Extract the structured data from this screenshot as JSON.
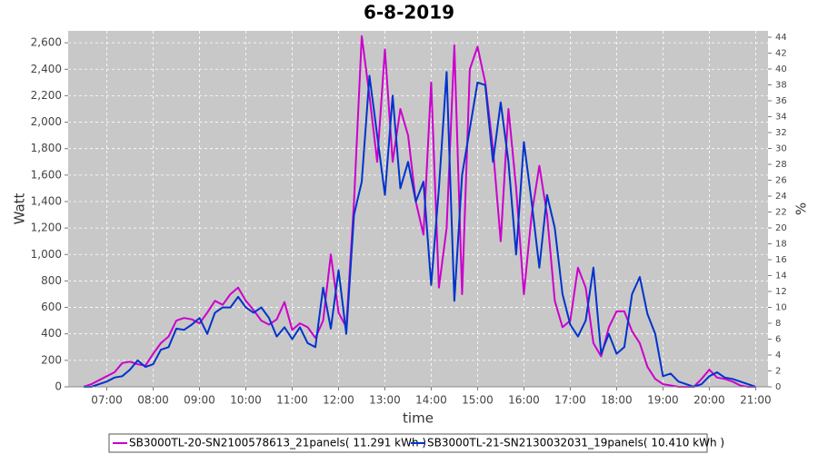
{
  "chart_data": {
    "type": "line",
    "title": "6-8-2019",
    "x_label": "time",
    "y_label": "Watt",
    "y2_label": "%",
    "x": [
      "06:30",
      "06:40",
      "06:50",
      "07:00",
      "07:10",
      "07:20",
      "07:30",
      "07:40",
      "07:50",
      "08:00",
      "08:10",
      "08:20",
      "08:30",
      "08:40",
      "08:50",
      "09:00",
      "09:10",
      "09:20",
      "09:30",
      "09:40",
      "09:50",
      "10:00",
      "10:10",
      "10:20",
      "10:30",
      "10:40",
      "10:50",
      "11:00",
      "11:10",
      "11:20",
      "11:30",
      "11:40",
      "11:50",
      "12:00",
      "12:10",
      "12:20",
      "12:30",
      "12:40",
      "12:50",
      "13:00",
      "13:10",
      "13:20",
      "13:30",
      "13:40",
      "13:50",
      "14:00",
      "14:10",
      "14:20",
      "14:30",
      "14:40",
      "14:50",
      "15:00",
      "15:10",
      "15:20",
      "15:30",
      "15:40",
      "15:50",
      "16:00",
      "16:10",
      "16:20",
      "16:30",
      "16:40",
      "16:50",
      "17:00",
      "17:10",
      "17:20",
      "17:30",
      "17:40",
      "17:50",
      "18:00",
      "18:10",
      "18:20",
      "18:30",
      "18:40",
      "18:50",
      "19:00",
      "19:10",
      "19:20",
      "19:30",
      "19:40",
      "19:50",
      "20:00",
      "20:10",
      "20:20",
      "20:30",
      "20:40",
      "20:50",
      "21:00"
    ],
    "series": [
      {
        "name": "SB3000TL-20-SN2100578613_21panels( 11.291 kWh )",
        "color": "#cc00cc",
        "values": [
          0,
          20,
          50,
          80,
          110,
          180,
          190,
          170,
          160,
          250,
          330,
          380,
          500,
          520,
          510,
          480,
          560,
          650,
          620,
          700,
          750,
          650,
          580,
          500,
          470,
          510,
          640,
          430,
          480,
          450,
          370,
          500,
          1000,
          560,
          450,
          1400,
          2650,
          2200,
          1700,
          2550,
          1700,
          2100,
          1900,
          1400,
          1150,
          2300,
          750,
          1200,
          2580,
          700,
          2400,
          2570,
          2300,
          1800,
          1100,
          2100,
          1500,
          700,
          1300,
          1670,
          1300,
          650,
          450,
          500,
          900,
          750,
          330,
          230,
          450,
          570,
          570,
          420,
          330,
          150,
          60,
          20,
          10,
          0,
          0,
          0,
          60,
          130,
          70,
          60,
          40,
          10,
          0,
          0
        ]
      },
      {
        "name": "SB3000TL-21-SN2130032031_19panels( 10.410 kWh )",
        "color": "#0033cc",
        "values": [
          0,
          0,
          20,
          40,
          70,
          80,
          130,
          200,
          150,
          170,
          280,
          300,
          440,
          430,
          470,
          520,
          400,
          560,
          600,
          600,
          680,
          600,
          560,
          600,
          520,
          380,
          450,
          360,
          450,
          330,
          300,
          750,
          440,
          880,
          400,
          1300,
          1550,
          2350,
          1900,
          1450,
          2200,
          1500,
          1700,
          1400,
          1550,
          770,
          1500,
          2380,
          650,
          1600,
          1950,
          2300,
          2280,
          1700,
          2150,
          1700,
          1000,
          1850,
          1400,
          900,
          1450,
          1200,
          700,
          470,
          380,
          500,
          900,
          250,
          400,
          250,
          300,
          700,
          830,
          550,
          400,
          80,
          100,
          40,
          20,
          0,
          20,
          80,
          110,
          70,
          60,
          40,
          20,
          0
        ]
      }
    ],
    "xlim": [
      "06:10",
      "21:16"
    ],
    "xticks": [
      "07:00",
      "08:00",
      "09:00",
      "10:00",
      "11:00",
      "12:00",
      "13:00",
      "14:00",
      "15:00",
      "16:00",
      "17:00",
      "18:00",
      "19:00",
      "20:00",
      "21:00"
    ],
    "ylim": [
      0,
      2690
    ],
    "yticks": [
      0,
      200,
      400,
      600,
      800,
      {
        "value": 1000,
        "label": "1,000"
      },
      {
        "value": 1200,
        "label": "1,200"
      },
      {
        "value": 1400,
        "label": "1,400"
      },
      {
        "value": 1600,
        "label": "1,600"
      },
      {
        "value": 1800,
        "label": "1,800"
      },
      {
        "value": 2000,
        "label": "2,000"
      },
      {
        "value": 2200,
        "label": "2,200"
      },
      {
        "value": 2400,
        "label": "2,400"
      },
      {
        "value": 2600,
        "label": "2,600"
      }
    ],
    "y2lim": [
      0,
      44.8
    ],
    "y2ticks": [
      0,
      2,
      4,
      6,
      8,
      10,
      12,
      14,
      16,
      18,
      20,
      22,
      24,
      26,
      28,
      30,
      32,
      34,
      36,
      38,
      40,
      42,
      44
    ],
    "grid": true
  }
}
